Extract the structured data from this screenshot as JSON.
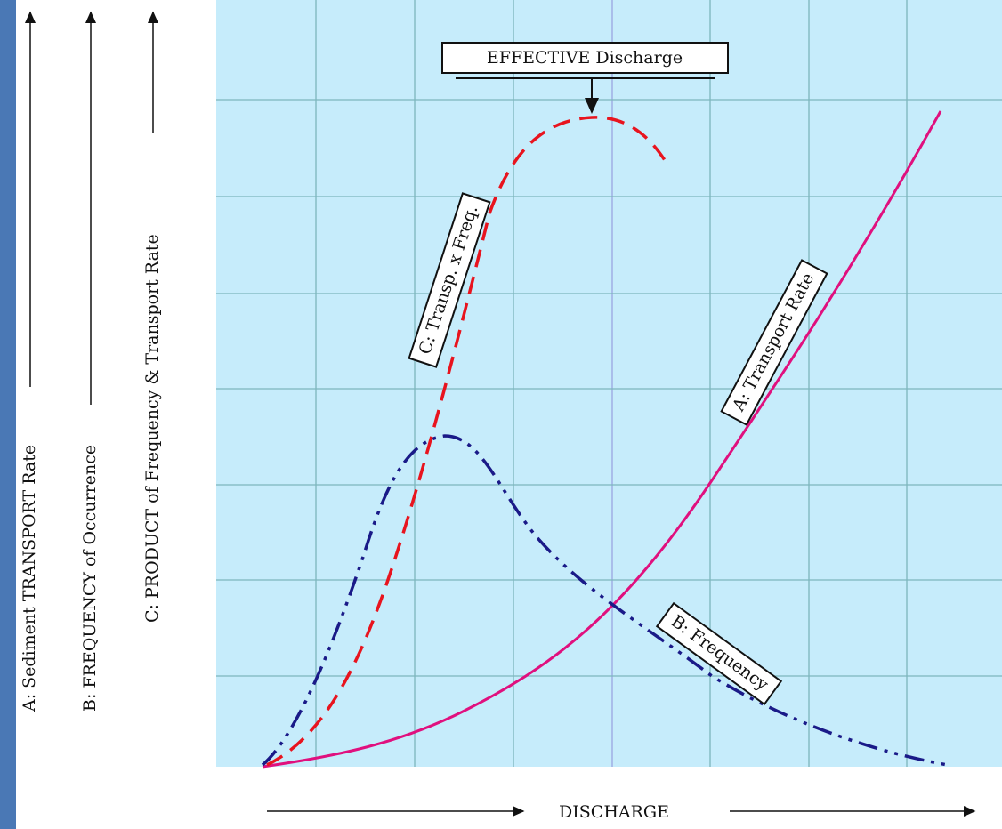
{
  "y_labels": [
    "A:   Sediment TRANSPORT Rate",
    "B:   FREQUENCY  of  Occurrence",
    "C:   PRODUCT of Frequency & Transport Rate"
  ],
  "annotation": "EFFECTIVE Discharge",
  "curve_labels": {
    "product": "C:   Transp. x Freq.",
    "transport": "A:   Transport Rate",
    "frequency": "B:   Frequency"
  },
  "x_label": "DISCHARGE"
}
